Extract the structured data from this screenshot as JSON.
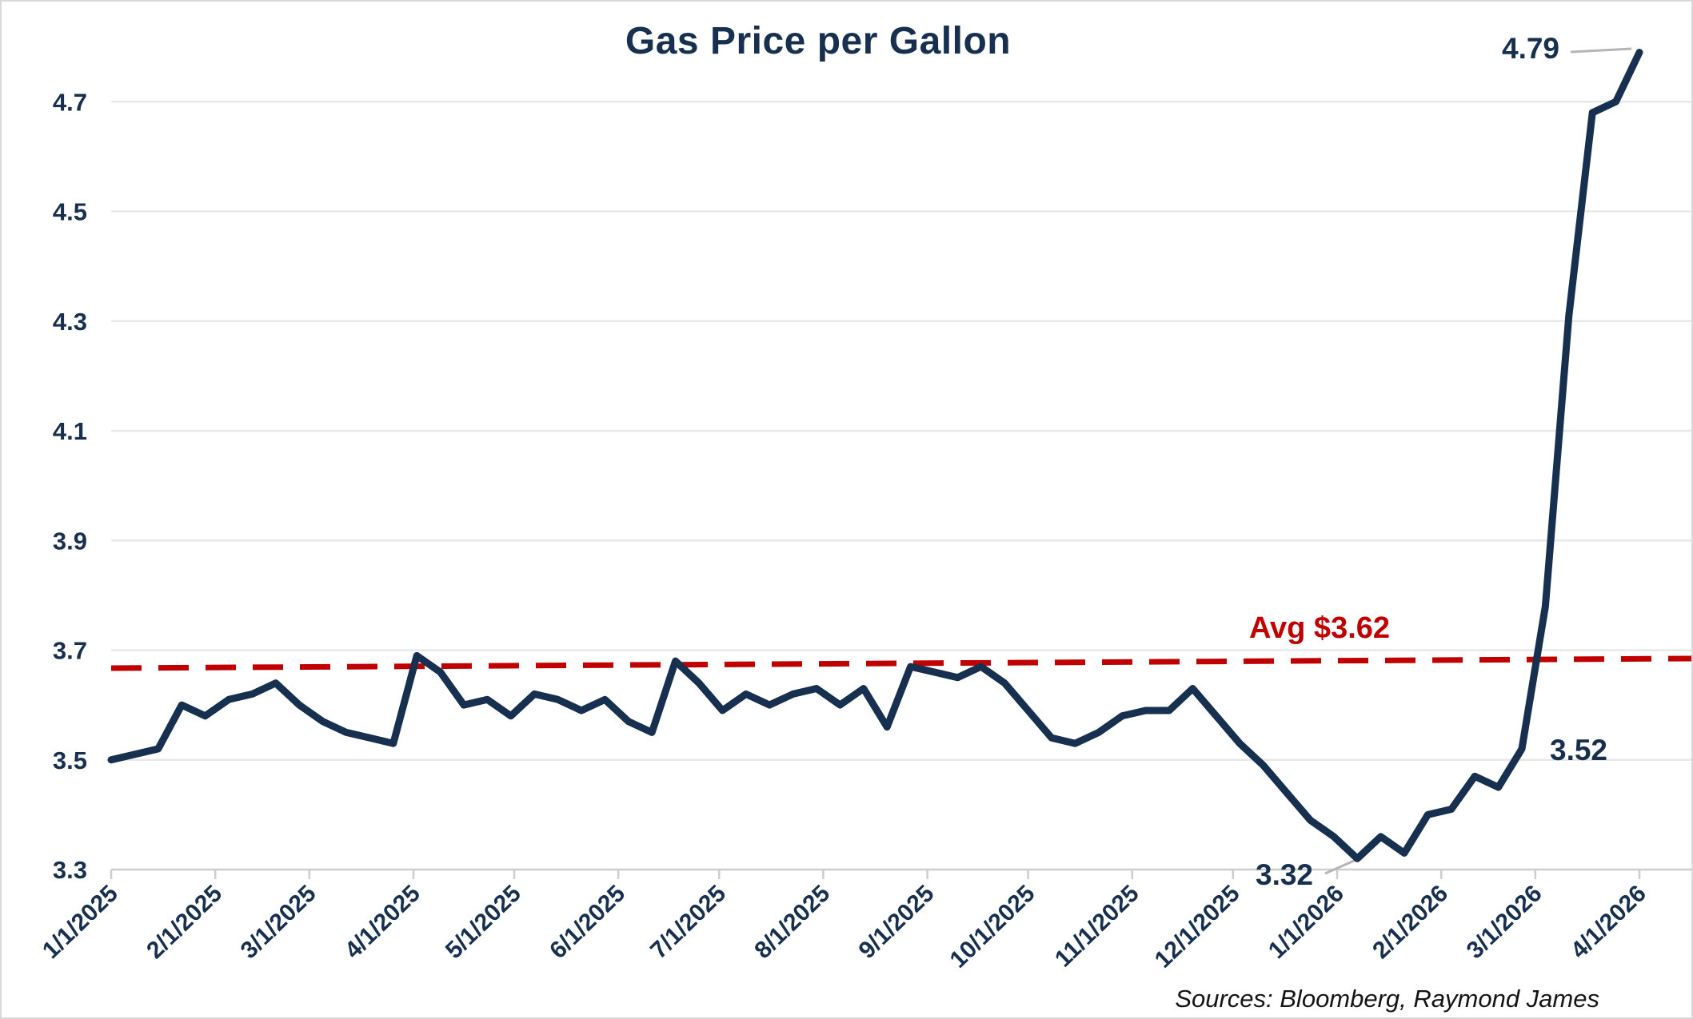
{
  "title": "Gas Price per Gallon",
  "source_note": "Sources: Bloomberg, Raymond James",
  "annotations": {
    "max_label": "4.79",
    "prespike_label": "3.52",
    "min_label": "3.32",
    "avg_label": "Avg $3.62"
  },
  "colors": {
    "line": "#173050",
    "average_line": "#c00000",
    "grid": "#e8e8e8",
    "axis": "#cdcdcd",
    "leader": "#b5b5b5",
    "label_text": "#173050",
    "source_text": "#141414",
    "background": "#ffffff",
    "border": "#d9d9d9"
  },
  "chart_data": {
    "type": "line",
    "title": "Gas Price per Gallon",
    "xlabel": "",
    "ylabel": "",
    "grid": "horizontal",
    "legend_position": "none",
    "ylim": [
      3.3,
      4.9
    ],
    "yticks": [
      3.3,
      3.5,
      3.7,
      3.9,
      4.1,
      4.3,
      4.5,
      4.7
    ],
    "x_tick_labels": [
      "1/1/2025",
      "2/1/2025",
      "3/1/2025",
      "4/1/2025",
      "5/1/2025",
      "6/1/2025",
      "7/1/2025",
      "8/1/2025",
      "9/1/2025",
      "10/1/2025",
      "11/1/2025",
      "12/1/2025",
      "1/1/2026",
      "2/1/2026",
      "3/1/2026",
      "4/1/2026"
    ],
    "x": [
      "1/1/2025",
      "1/8/2025",
      "1/15/2025",
      "1/22/2025",
      "1/29/2025",
      "2/5/2025",
      "2/12/2025",
      "2/19/2025",
      "2/26/2025",
      "3/5/2025",
      "3/12/2025",
      "3/19/2025",
      "3/26/2025",
      "4/2/2025",
      "4/9/2025",
      "4/16/2025",
      "4/23/2025",
      "4/30/2025",
      "5/7/2025",
      "5/14/2025",
      "5/21/2025",
      "5/28/2025",
      "6/4/2025",
      "6/11/2025",
      "6/18/2025",
      "6/25/2025",
      "7/2/2025",
      "7/9/2025",
      "7/16/2025",
      "7/23/2025",
      "7/30/2025",
      "8/6/2025",
      "8/13/2025",
      "8/20/2025",
      "8/27/2025",
      "9/3/2025",
      "9/10/2025",
      "9/17/2025",
      "9/24/2025",
      "10/1/2025",
      "10/8/2025",
      "10/15/2025",
      "10/22/2025",
      "10/29/2025",
      "11/5/2025",
      "11/12/2025",
      "11/19/2025",
      "11/26/2025",
      "12/3/2025",
      "12/10/2025",
      "12/17/2025",
      "12/24/2025",
      "12/31/2025",
      "1/7/2026",
      "1/14/2026",
      "1/21/2026",
      "1/28/2026",
      "2/4/2026",
      "2/11/2026",
      "2/18/2026",
      "2/25/2026",
      "3/4/2026",
      "3/11/2026",
      "3/18/2026",
      "3/25/2026",
      "4/1/2026"
    ],
    "series": [
      {
        "name": "Gas price per gallon (USD)",
        "values": [
          3.5,
          3.51,
          3.52,
          3.6,
          3.58,
          3.61,
          3.62,
          3.64,
          3.6,
          3.57,
          3.55,
          3.54,
          3.53,
          3.69,
          3.66,
          3.6,
          3.61,
          3.58,
          3.62,
          3.61,
          3.59,
          3.61,
          3.57,
          3.55,
          3.68,
          3.64,
          3.59,
          3.62,
          3.6,
          3.62,
          3.63,
          3.6,
          3.63,
          3.56,
          3.67,
          3.66,
          3.65,
          3.67,
          3.64,
          3.59,
          3.54,
          3.53,
          3.55,
          3.58,
          3.59,
          3.59,
          3.63,
          3.58,
          3.53,
          3.49,
          3.44,
          3.39,
          3.36,
          3.32,
          3.36,
          3.33,
          3.4,
          3.41,
          3.47,
          3.45,
          3.52,
          3.78,
          4.31,
          4.68,
          4.7,
          4.79
        ]
      }
    ],
    "average_line": {
      "value": 3.62,
      "label": "Avg $3.62"
    },
    "callouts": [
      {
        "label": "4.79",
        "point_date": "4/1/2026",
        "meaning": "final / maximum value"
      },
      {
        "label": "3.52",
        "point_date": "2/25/2026",
        "meaning": "value just before spike"
      },
      {
        "label": "3.32",
        "point_date": "1/7/2026",
        "meaning": "minimum value"
      }
    ]
  }
}
